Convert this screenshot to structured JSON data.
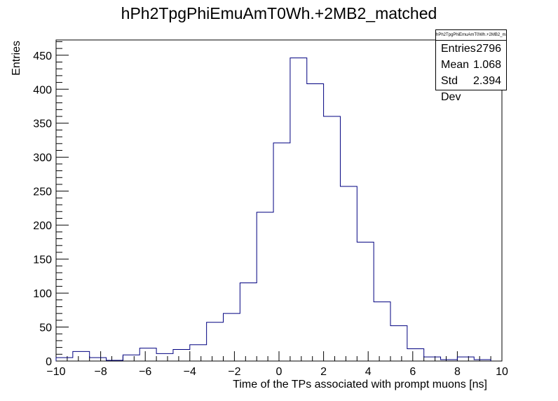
{
  "chart_data": {
    "type": "bar",
    "title": "hPh2TpgPhiEmuAmT0Wh.+2MB2_matched",
    "xlabel": "Time of the TPs associated with prompt muons [ns]",
    "ylabel": "Entries",
    "xlim": [
      -10,
      10
    ],
    "ylim": [
      0,
      472.5
    ],
    "bin_width": 0.75,
    "bin_low_edges": [
      -10,
      -9.25,
      -8.5,
      -7.75,
      -7,
      -6.25,
      -5.5,
      -4.75,
      -4,
      -3.25,
      -2.5,
      -1.75,
      -1,
      -0.25,
      0.5,
      1.25,
      2,
      2.75,
      3.5,
      4.25,
      5,
      5.75,
      6.5,
      7.25,
      8,
      8.75
    ],
    "values": [
      5,
      14,
      5,
      1,
      9,
      19,
      11,
      17,
      24,
      57,
      70,
      115,
      219,
      321,
      446,
      408,
      360,
      257,
      175,
      87,
      52,
      18,
      6,
      2,
      6,
      2
    ],
    "x_ticks": [
      -10,
      -8,
      -6,
      -4,
      -2,
      0,
      2,
      4,
      6,
      8,
      10
    ],
    "x_tick_labels": [
      "−10",
      "−8",
      "−6",
      "−4",
      "−2",
      "0",
      "2",
      "4",
      "6",
      "8",
      "10"
    ],
    "y_ticks": [
      0,
      50,
      100,
      150,
      200,
      250,
      300,
      350,
      400,
      450
    ],
    "y_tick_labels": [
      "0",
      "50",
      "100",
      "150",
      "200",
      "250",
      "300",
      "350",
      "400",
      "450"
    ],
    "line_color": "#000080",
    "grid": false,
    "legend": "none"
  },
  "stats": {
    "name": "hPh2TpgPhiEmuAmT0Wh.+2MB2_matched",
    "rows": [
      {
        "label": "Entries",
        "value": "2796"
      },
      {
        "label": "Mean",
        "value": "1.068"
      },
      {
        "label": "Std Dev",
        "value": "2.394"
      }
    ]
  }
}
